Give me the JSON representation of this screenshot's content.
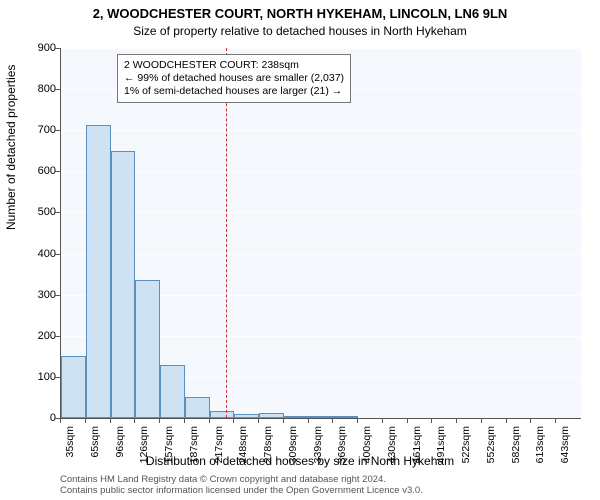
{
  "chart": {
    "type": "histogram",
    "title_main": "2, WOODCHESTER COURT, NORTH HYKEHAM, LINCOLN, LN6 9LN",
    "title_sub": "Size of property relative to detached houses in North Hykeham",
    "ylabel": "Number of detached properties",
    "xlabel": "Distribution of detached houses by size in North Hykeham",
    "title_fontsize": 13,
    "sub_fontsize": 12,
    "label_fontsize": 12,
    "tick_fontsize": 11,
    "background_color": "#ffffff",
    "plot_bg_color": "#f5f8fd",
    "grid_color": "#ffffff",
    "axis_color": "#555555",
    "bar_fill": "#cfe2f3",
    "bar_border": "#5b8fbf",
    "vline_color": "#c33",
    "ylim": [
      0,
      900
    ],
    "yticks": [
      0,
      100,
      200,
      300,
      400,
      500,
      600,
      700,
      800,
      900
    ],
    "x_categories": [
      "35sqm",
      "65sqm",
      "96sqm",
      "126sqm",
      "157sqm",
      "187sqm",
      "217sqm",
      "248sqm",
      "278sqm",
      "309sqm",
      "339sqm",
      "369sqm",
      "400sqm",
      "430sqm",
      "461sqm",
      "491sqm",
      "522sqm",
      "552sqm",
      "582sqm",
      "613sqm",
      "643sqm"
    ],
    "bars": [
      150,
      712,
      650,
      335,
      130,
      50,
      18,
      10,
      12,
      6,
      5,
      2,
      0,
      0,
      0,
      0,
      0,
      0,
      0,
      0
    ],
    "bar_width_ratio": 1.0,
    "vline_x_value": 238,
    "annotation": {
      "lines": [
        "2 WOODCHESTER COURT: 238sqm",
        "← 99% of detached houses are smaller (2,037)",
        "1% of semi-detached houses are larger (21) →"
      ],
      "border_color": "#777",
      "bg_color": "#ffffff",
      "fontsize": 10.5
    },
    "footer_lines": [
      "Contains HM Land Registry data © Crown copyright and database right 2024.",
      "Contains public sector information licensed under the Open Government Licence v3.0."
    ],
    "footer_color": "#555",
    "footer_fontsize": 9.5
  }
}
